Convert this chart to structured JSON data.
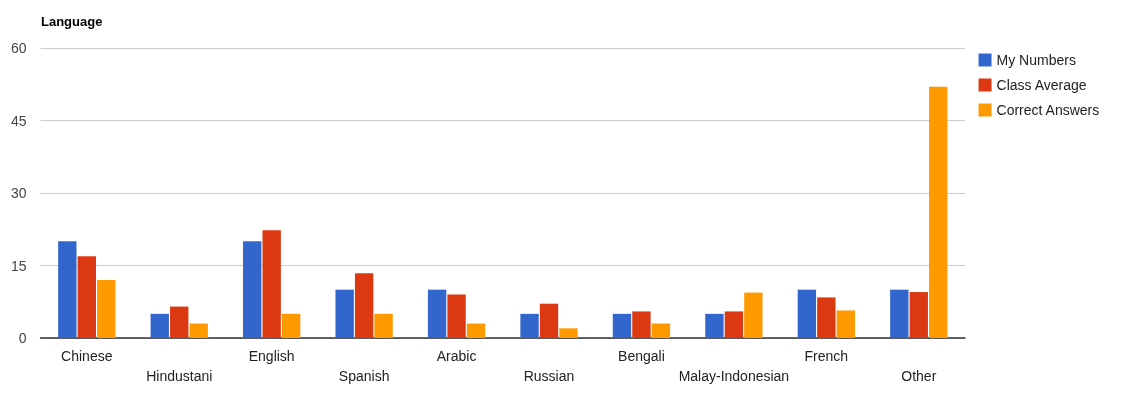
{
  "chart_data": {
    "type": "bar",
    "title": "Language",
    "categories": [
      "Chinese",
      "Hindustani",
      "English",
      "Spanish",
      "Arabic",
      "Russian",
      "Bengali",
      "Malay-Indonesian",
      "French",
      "Other"
    ],
    "series": [
      {
        "name": "My Numbers",
        "color": "#3366cc",
        "values": [
          20,
          5,
          20,
          10,
          10,
          5,
          5,
          5,
          10,
          10
        ]
      },
      {
        "name": "Class Average",
        "color": "#dc3912",
        "values": [
          16.9,
          6.5,
          22.3,
          13.4,
          9,
          7.1,
          5.5,
          5.5,
          8.4,
          9.5
        ]
      },
      {
        "name": "Correct Answers",
        "color": "#ff9900",
        "values": [
          12,
          3,
          5,
          5,
          3,
          2,
          3,
          9.4,
          5.7,
          52
        ]
      }
    ],
    "ylim": [
      0,
      60
    ],
    "yticks": [
      0,
      15,
      30,
      45,
      60
    ],
    "grid": "y",
    "legend": "right"
  }
}
